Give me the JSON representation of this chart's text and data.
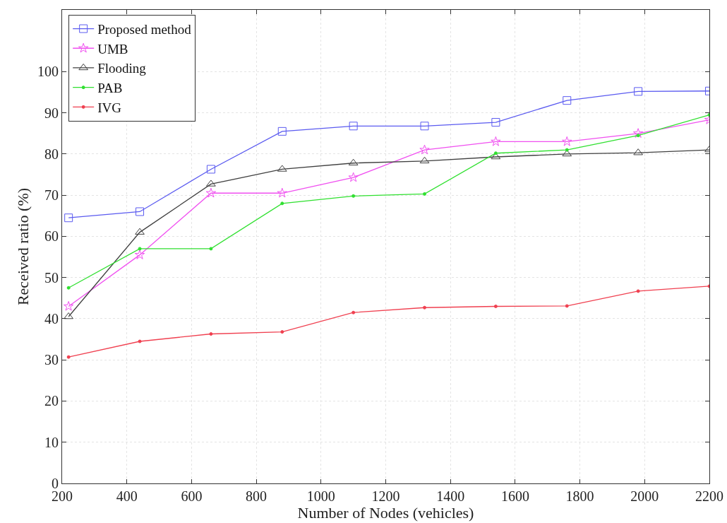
{
  "chart_data": {
    "type": "line",
    "xlabel": "Number of Nodes (vehicles)",
    "ylabel": "Received ratio (%)",
    "x": [
      220,
      440,
      660,
      880,
      1100,
      1320,
      1540,
      1760,
      1980,
      2200
    ],
    "series": [
      {
        "name": "Proposed method",
        "color": "#5b5bf0",
        "marker": "square",
        "values": [
          64.5,
          66,
          76.3,
          85.5,
          86.8,
          86.8,
          87.7,
          93,
          95.2,
          95.3
        ]
      },
      {
        "name": "UMB",
        "color": "#f050f0",
        "marker": "star",
        "values": [
          43,
          55.5,
          70.5,
          70.5,
          74.3,
          81,
          83,
          83,
          85,
          88.3
        ]
      },
      {
        "name": "Flooding",
        "color": "#404040",
        "marker": "triangle",
        "values": [
          40.5,
          61,
          72.7,
          76.3,
          77.8,
          78.3,
          79.3,
          80,
          80.3,
          81
        ]
      },
      {
        "name": "PAB",
        "color": "#30e030",
        "marker": "circle",
        "values": [
          47.5,
          57,
          57,
          68,
          69.8,
          70.3,
          80.2,
          81,
          84.5,
          89.5
        ]
      },
      {
        "name": "IVG",
        "color": "#f04050",
        "marker": "circle",
        "values": [
          30.7,
          34.5,
          36.3,
          36.8,
          41.5,
          42.7,
          43,
          43.1,
          46.7,
          47.9
        ]
      }
    ],
    "xlim": [
      200,
      2200
    ],
    "xticks": [
      200,
      400,
      600,
      800,
      1000,
      1200,
      1400,
      1600,
      1800,
      2000,
      2200
    ],
    "ylim": [
      0,
      115
    ],
    "yticks": [
      0,
      10,
      20,
      30,
      40,
      50,
      60,
      70,
      80,
      90,
      100
    ],
    "grid": true,
    "legend": "top left",
    "line_style": "solid"
  }
}
